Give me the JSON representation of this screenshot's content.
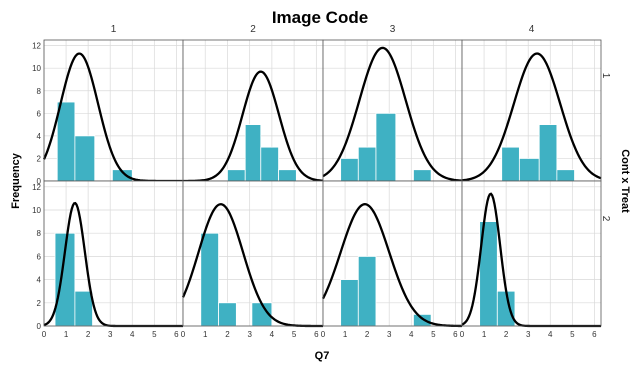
{
  "chart_data": {
    "type": "bar",
    "subtype": "histogram-grid-with-normal-curves",
    "title": "Image Code",
    "xlabel": "Q7",
    "ylabel": "Frequency",
    "row_facet_label": "Cont x Treat",
    "column_facets": [
      "1",
      "2",
      "3",
      "4"
    ],
    "row_facets": [
      "1",
      "2"
    ],
    "xlim": [
      0,
      6.3
    ],
    "ylim": [
      0,
      12.5
    ],
    "x_ticks": [
      "0",
      "1",
      "2",
      "3",
      "4",
      "5",
      "6"
    ],
    "y_ticks": [
      "0",
      "2",
      "4",
      "6",
      "8",
      "10",
      "12"
    ],
    "grid": true,
    "colors": {
      "bar": "#3fb1c3",
      "bar_edge": "#ffffff",
      "curve": "#000000",
      "grid": "#d9d9d9",
      "frame": "#555555"
    },
    "panels": [
      {
        "row": 0,
        "col": 0,
        "bins": [
          {
            "x0": 0.6,
            "x1": 1.4,
            "count": 7
          },
          {
            "x0": 1.4,
            "x1": 2.3,
            "count": 4
          },
          {
            "x0": 3.1,
            "x1": 4.0,
            "count": 1
          }
        ],
        "curve": {
          "mean": 1.6,
          "sd": 0.85,
          "scale": 11.3
        }
      },
      {
        "row": 0,
        "col": 1,
        "bins": [
          {
            "x0": 2.0,
            "x1": 2.8,
            "count": 1
          },
          {
            "x0": 2.8,
            "x1": 3.5,
            "count": 5
          },
          {
            "x0": 3.5,
            "x1": 4.3,
            "count": 3
          },
          {
            "x0": 4.3,
            "x1": 5.1,
            "count": 1
          }
        ],
        "curve": {
          "mean": 3.5,
          "sd": 0.82,
          "scale": 9.7
        }
      },
      {
        "row": 0,
        "col": 2,
        "bins": [
          {
            "x0": 0.8,
            "x1": 1.6,
            "count": 2
          },
          {
            "x0": 1.6,
            "x1": 2.4,
            "count": 3
          },
          {
            "x0": 2.4,
            "x1": 3.3,
            "count": 6
          },
          {
            "x0": 4.1,
            "x1": 4.9,
            "count": 1
          }
        ],
        "curve": {
          "mean": 2.7,
          "sd": 1.05,
          "scale": 11.8
        }
      },
      {
        "row": 0,
        "col": 3,
        "bins": [
          {
            "x0": 1.8,
            "x1": 2.6,
            "count": 3
          },
          {
            "x0": 2.6,
            "x1": 3.5,
            "count": 2
          },
          {
            "x0": 3.5,
            "x1": 4.3,
            "count": 5
          },
          {
            "x0": 4.3,
            "x1": 5.1,
            "count": 1
          }
        ],
        "curve": {
          "mean": 3.4,
          "sd": 1.05,
          "scale": 11.3
        }
      },
      {
        "row": 1,
        "col": 0,
        "bins": [
          {
            "x0": 0.5,
            "x1": 1.4,
            "count": 8
          },
          {
            "x0": 1.4,
            "x1": 2.2,
            "count": 3
          }
        ],
        "curve": {
          "mean": 1.4,
          "sd": 0.45,
          "scale": 10.6
        }
      },
      {
        "row": 1,
        "col": 1,
        "bins": [
          {
            "x0": 0.8,
            "x1": 1.6,
            "count": 8
          },
          {
            "x0": 1.6,
            "x1": 2.4,
            "count": 2
          },
          {
            "x0": 3.1,
            "x1": 4.0,
            "count": 2
          }
        ],
        "curve": {
          "mean": 1.7,
          "sd": 1.0,
          "scale": 10.5
        }
      },
      {
        "row": 1,
        "col": 2,
        "bins": [
          {
            "x0": 0.8,
            "x1": 1.6,
            "count": 4
          },
          {
            "x0": 1.6,
            "x1": 2.4,
            "count": 6
          },
          {
            "x0": 4.1,
            "x1": 4.9,
            "count": 1
          }
        ],
        "curve": {
          "mean": 1.9,
          "sd": 1.1,
          "scale": 10.5
        }
      },
      {
        "row": 1,
        "col": 3,
        "bins": [
          {
            "x0": 0.8,
            "x1": 1.6,
            "count": 9
          },
          {
            "x0": 1.6,
            "x1": 2.4,
            "count": 3
          }
        ],
        "curve": {
          "mean": 1.3,
          "sd": 0.43,
          "scale": 11.4
        }
      }
    ]
  }
}
